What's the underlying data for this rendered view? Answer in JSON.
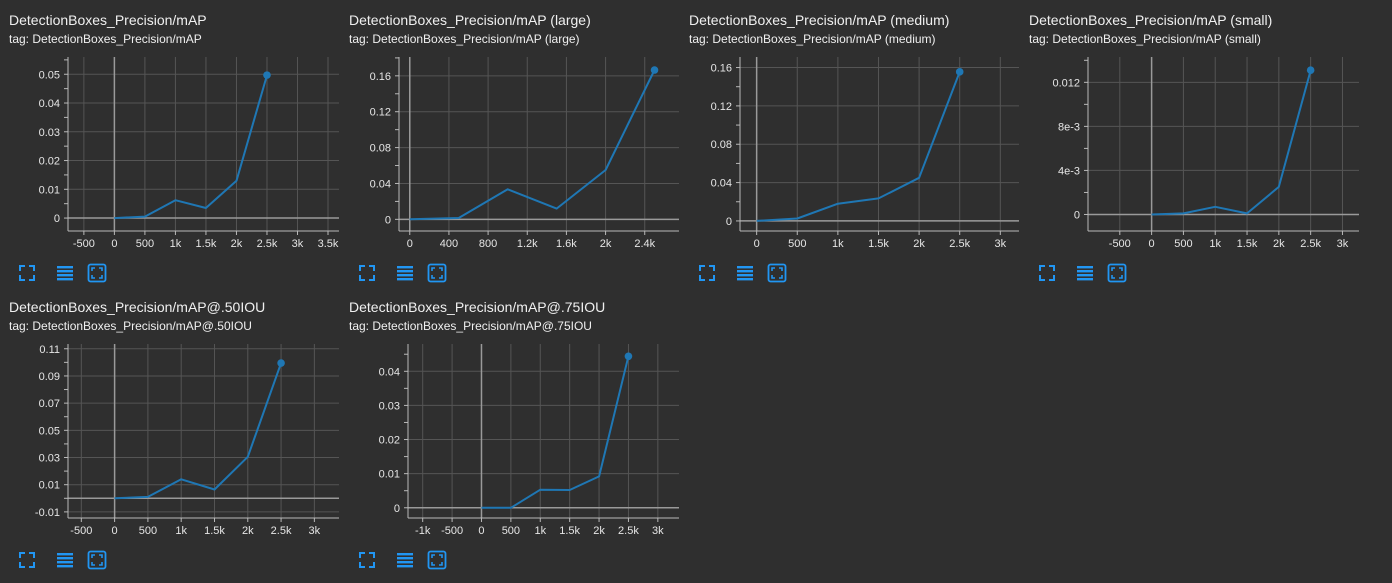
{
  "theme": {
    "background": "#2f2f2f",
    "line_color": "#1f77b4",
    "text_color": "#e6e6e6",
    "axis_color": "#b9b9b9",
    "grid_color": "#555555",
    "button_color": "#2196f3"
  },
  "toolbar": {
    "icons": [
      "fullscreen-icon",
      "data-table-icon",
      "fit-domain-icon"
    ]
  },
  "cards": [
    {
      "title": "DetectionBoxes_Precision/mAP",
      "tag": "tag: DetectionBoxes_Precision/mAP"
    },
    {
      "title": "DetectionBoxes_Precision/mAP (large)",
      "tag": "tag: DetectionBoxes_Precision/mAP (large)"
    },
    {
      "title": "DetectionBoxes_Precision/mAP (medium)",
      "tag": "tag: DetectionBoxes_Precision/mAP (medium)"
    },
    {
      "title": "DetectionBoxes_Precision/mAP (small)",
      "tag": "tag: DetectionBoxes_Precision/mAP (small)"
    },
    {
      "title": "DetectionBoxes_Precision/mAP@.50IOU",
      "tag": "tag: DetectionBoxes_Precision/mAP@.50IOU"
    },
    {
      "title": "DetectionBoxes_Precision/mAP@.75IOU",
      "tag": "tag: DetectionBoxes_Precision/mAP@.75IOU"
    }
  ],
  "chart_data": [
    {
      "type": "line",
      "title": "DetectionBoxes_Precision/mAP",
      "x": [
        0,
        500,
        1000,
        1500,
        2000,
        2500
      ],
      "y": [
        0,
        0.0005,
        0.0062,
        0.0035,
        0.013,
        0.0497
      ],
      "xlim": [
        -760,
        3680
      ],
      "ylim": [
        -0.0045,
        0.056
      ],
      "xticks": [
        -500,
        0,
        500,
        1000,
        1500,
        2000,
        2500,
        3000,
        3500
      ],
      "xtick_labels": [
        "-500",
        "0",
        "500",
        "1k",
        "1.5k",
        "2k",
        "2.5k",
        "3k",
        "3.5k"
      ],
      "yticks": [
        0,
        0.01,
        0.02,
        0.03,
        0.04,
        0.05
      ],
      "ytick_labels": [
        "0",
        "0.01",
        "0.02",
        "0.03",
        "0.04",
        "0.05"
      ],
      "grid": true
    },
    {
      "type": "line",
      "title": "DetectionBoxes_Precision/mAP (large)",
      "x": [
        0,
        500,
        1000,
        1500,
        2000,
        2500
      ],
      "y": [
        0,
        0.0015,
        0.0335,
        0.012,
        0.055,
        0.1665
      ],
      "xlim": [
        -110,
        2750
      ],
      "ylim": [
        -0.013,
        0.181
      ],
      "xticks": [
        0,
        400,
        800,
        1200,
        1600,
        2000,
        2400
      ],
      "xtick_labels": [
        "0",
        "400",
        "800",
        "1.2k",
        "1.6k",
        "2k",
        "2.4k"
      ],
      "yticks": [
        0,
        0.04,
        0.08,
        0.12,
        0.16
      ],
      "ytick_labels": [
        "0",
        "0.04",
        "0.08",
        "0.12",
        "0.16"
      ],
      "grid": true
    },
    {
      "type": "line",
      "title": "DetectionBoxes_Precision/mAP (medium)",
      "x": [
        0,
        500,
        1000,
        1500,
        2000,
        2500
      ],
      "y": [
        0,
        0.0025,
        0.018,
        0.0235,
        0.045,
        0.1555
      ],
      "xlim": [
        -205,
        3230
      ],
      "ylim": [
        -0.0105,
        0.171
      ],
      "xticks": [
        0,
        500,
        1000,
        1500,
        2000,
        2500,
        3000
      ],
      "xtick_labels": [
        "0",
        "500",
        "1k",
        "1.5k",
        "2k",
        "2.5k",
        "3k"
      ],
      "yticks": [
        0,
        0.04,
        0.08,
        0.12,
        0.16
      ],
      "ytick_labels": [
        "0",
        "0.04",
        "0.08",
        "0.12",
        "0.16"
      ],
      "grid": true
    },
    {
      "type": "line",
      "title": "DetectionBoxes_Precision/mAP (small)",
      "x": [
        0,
        500,
        1000,
        1500,
        2000,
        2500
      ],
      "y": [
        0,
        0.0001,
        0.0007,
        0.0001,
        0.0025,
        0.0131
      ],
      "xlim": [
        -1000,
        3260
      ],
      "ylim": [
        -0.0015,
        0.0143
      ],
      "xticks": [
        -500,
        0,
        500,
        1000,
        1500,
        2000,
        2500,
        3000
      ],
      "xtick_labels": [
        "-500",
        "0",
        "500",
        "1k",
        "1.5k",
        "2k",
        "2.5k",
        "3k"
      ],
      "yticks": [
        0,
        0.004,
        0.008,
        0.012
      ],
      "ytick_labels": [
        "0",
        "4e-3",
        "8e-3",
        "0.012"
      ],
      "grid": true
    },
    {
      "type": "line",
      "title": "DetectionBoxes_Precision/mAP@.50IOU",
      "x": [
        0,
        500,
        1000,
        1500,
        2000,
        2500
      ],
      "y": [
        0,
        0.001,
        0.014,
        0.0065,
        0.0305,
        0.0995
      ],
      "xlim": [
        -700,
        3370
      ],
      "ylim": [
        -0.0145,
        0.1135
      ],
      "xticks": [
        -500,
        0,
        500,
        1000,
        1500,
        2000,
        2500,
        3000
      ],
      "xtick_labels": [
        "-500",
        "0",
        "500",
        "1k",
        "1.5k",
        "2k",
        "2.5k",
        "3k"
      ],
      "yticks": [
        -0.01,
        0.01,
        0.03,
        0.05,
        0.07,
        0.09,
        0.11
      ],
      "ytick_labels": [
        "-0.01",
        "0.01",
        "0.03",
        "0.05",
        "0.07",
        "0.09",
        "0.11"
      ],
      "grid": true
    },
    {
      "type": "line",
      "title": "DetectionBoxes_Precision/mAP@.75IOU",
      "x": [
        0,
        500,
        1000,
        1500,
        2000,
        2500
      ],
      "y": [
        0,
        0,
        0.0053,
        0.0052,
        0.0092,
        0.0444
      ],
      "xlim": [
        -1250,
        3360
      ],
      "ylim": [
        -0.003,
        0.048
      ],
      "xticks": [
        -1000,
        -500,
        0,
        500,
        1000,
        1500,
        2000,
        2500,
        3000
      ],
      "xtick_labels": [
        "-1k",
        "-500",
        "0",
        "500",
        "1k",
        "1.5k",
        "2k",
        "2.5k",
        "3k"
      ],
      "yticks": [
        0,
        0.01,
        0.02,
        0.03,
        0.04
      ],
      "ytick_labels": [
        "0",
        "0.01",
        "0.02",
        "0.03",
        "0.04"
      ],
      "grid": true
    }
  ]
}
